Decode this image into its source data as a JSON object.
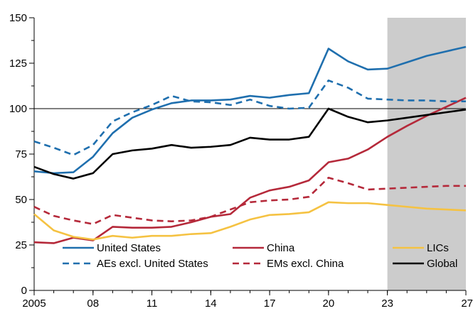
{
  "chart_data": {
    "type": "line",
    "title": "",
    "xlabel": "",
    "ylabel": "",
    "xlim": [
      2005,
      2027
    ],
    "ylim": [
      0,
      150
    ],
    "yticks": [
      0,
      25,
      50,
      75,
      100,
      125,
      150
    ],
    "xticks": [
      2005,
      2008,
      2011,
      2014,
      2017,
      2020,
      2023,
      2027
    ],
    "xtick_labels": [
      "2005",
      "08",
      "11",
      "14",
      "17",
      "20",
      "23",
      "27"
    ],
    "reference_line_y": 100,
    "projection_shading": {
      "from": 2023,
      "to": 2027,
      "color": "#cccccc"
    },
    "grid": false,
    "legend": {
      "placement": "bottom",
      "columns": 3
    },
    "x": [
      2005,
      2006,
      2007,
      2008,
      2009,
      2010,
      2011,
      2012,
      2013,
      2014,
      2015,
      2016,
      2017,
      2018,
      2019,
      2020,
      2021,
      2022,
      2023,
      2024,
      2025,
      2026,
      2027
    ],
    "series": [
      {
        "name": "United States",
        "color": "#1f6fae",
        "dash": "solid",
        "values": [
          65.5,
          64.5,
          65,
          73.5,
          86.5,
          95,
          99.5,
          103,
          104.5,
          104.5,
          105,
          107,
          106,
          107.5,
          108.5,
          133,
          126,
          121.5,
          122,
          125.5,
          129,
          131.5,
          134
        ]
      },
      {
        "name": "China",
        "color": "#b5293a",
        "dash": "solid",
        "values": [
          26.5,
          26,
          29,
          27.5,
          35,
          34.5,
          34.5,
          35,
          37.5,
          40.5,
          42,
          51,
          55,
          57,
          60.5,
          70.5,
          72.5,
          77.5,
          84.5,
          90.5,
          96,
          101,
          106
        ]
      },
      {
        "name": "LICs",
        "color": "#f5c242",
        "dash": "solid",
        "values": [
          42,
          33,
          29.5,
          28,
          30,
          29,
          30,
          30,
          31,
          31.5,
          35,
          39,
          41.5,
          42,
          43,
          48.5,
          48,
          48,
          47,
          46,
          45,
          44.5,
          44
        ]
      },
      {
        "name": "AEs excl. United States",
        "color": "#1f6fae",
        "dash": "dashed",
        "values": [
          82,
          78.5,
          74.5,
          80,
          93,
          98,
          102,
          107,
          104,
          103.5,
          102,
          105,
          101.5,
          100,
          100.5,
          115.5,
          111.5,
          105.5,
          105,
          104.5,
          104.5,
          104,
          104
        ]
      },
      {
        "name": "EMs excl. China",
        "color": "#b5293a",
        "dash": "dashed",
        "values": [
          46,
          41,
          38.5,
          36.5,
          41.5,
          40,
          38.5,
          38,
          38.5,
          40.5,
          44.5,
          48.5,
          49.5,
          50,
          51.5,
          62,
          59,
          55.5,
          56,
          56.5,
          57,
          57.5,
          57.5
        ]
      },
      {
        "name": "Global",
        "color": "#000000",
        "dash": "solid",
        "values": [
          68,
          64,
          61.5,
          64.5,
          75,
          77,
          78,
          80,
          78.5,
          79,
          80,
          84,
          83,
          83,
          84.5,
          100,
          95.5,
          92.5,
          93.5,
          95,
          96.5,
          98,
          99.5
        ]
      }
    ]
  }
}
